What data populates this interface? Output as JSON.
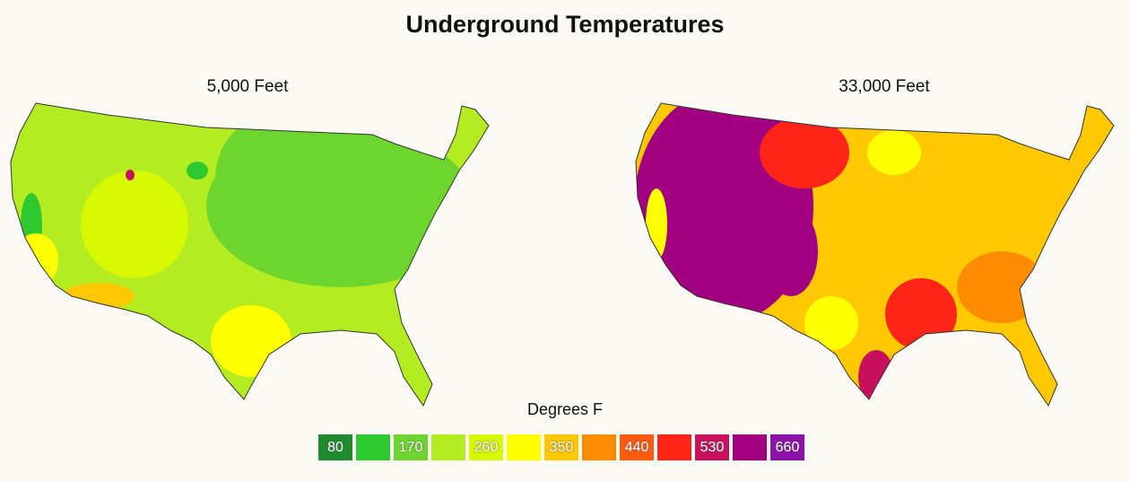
{
  "title": "Underground Temperatures",
  "maps": [
    {
      "subtitle": "5,000 Feet"
    },
    {
      "subtitle": "33,000 Feet"
    }
  ],
  "legend": {
    "title": "Degrees F",
    "swatches": [
      {
        "label": "80",
        "color": "#1e8c2e"
      },
      {
        "label": "",
        "color": "#2ec92e"
      },
      {
        "label": "170",
        "color": "#6dd62e"
      },
      {
        "label": "",
        "color": "#b4ec22"
      },
      {
        "label": "260",
        "color": "#d6f800"
      },
      {
        "label": "",
        "color": "#ffff00"
      },
      {
        "label": "350",
        "color": "#ffc800"
      },
      {
        "label": "",
        "color": "#ff8c00"
      },
      {
        "label": "440",
        "color": "#ff5a10"
      },
      {
        "label": "",
        "color": "#ff2418"
      },
      {
        "label": "530",
        "color": "#c8105c"
      },
      {
        "label": "",
        "color": "#a20080"
      },
      {
        "label": "660",
        "color": "#8e12aa"
      }
    ]
  }
}
